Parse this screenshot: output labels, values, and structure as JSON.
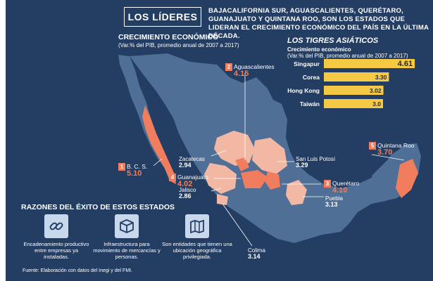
{
  "header": {
    "title": "LOS LÍDERES",
    "headline": "BAJACALIFORNIA SUR, AGUASCALIENTES, QUERÉTARO, GUANAJUATO Y QUINTANA ROO, SON LOS ESTADOS QUE LIDERAN EL CRECIMIENTO ECONÓMICO DEL PAÍS EN LA ÚLTIMA DÉCADA."
  },
  "growth": {
    "title": "CRECIMIENTO ECONÓMICO",
    "subtitle": "(Var.% del PIB, promedio anual de 2007 a 2017)"
  },
  "tigers": {
    "title": "LOS TIGRES ASIÁTICOS",
    "sub1": "Crecimiento económico",
    "sub2": "(Var.% del PIB, promedio anual de 2007 a 2017)"
  },
  "chart_data": {
    "type": "bar",
    "orientation": "horizontal",
    "title": "LOS TIGRES ASIÁTICOS",
    "categories": [
      "Singapur",
      "Corea",
      "Hong Kong",
      "Taiwán"
    ],
    "values": [
      4.61,
      3.3,
      3.02,
      3.0
    ],
    "value_labels": [
      "4.61",
      "3.30",
      "3.02",
      "3.0"
    ],
    "xlim": [
      0,
      5
    ],
    "grid": false,
    "bar_color": "#f6c945"
  },
  "leaders": [
    {
      "rank": "1",
      "name": "B. C. S.",
      "value": "5.10"
    },
    {
      "rank": "2",
      "name": "Aguascalientes",
      "value": "4.15"
    },
    {
      "rank": "3",
      "name": "Querétaro",
      "value": "4.10"
    },
    {
      "rank": "4",
      "name": "Guanajuato",
      "value": "4.02"
    },
    {
      "rank": "5",
      "name": "Quintana Roo",
      "value": "3.70"
    }
  ],
  "others": [
    {
      "name": "Zacatecas",
      "value": "2.94"
    },
    {
      "name": "San Luis Potosí",
      "value": "3.29"
    },
    {
      "name": "Jalisco",
      "value": "2.86"
    },
    {
      "name": "Puebla",
      "value": "3.13"
    },
    {
      "name": "Colima",
      "value": "3.14"
    }
  ],
  "reasons": {
    "title": "RAZONES DEL ÉXITO DE ESTOS ESTADOS",
    "items": [
      {
        "icon": "chain-link-icon",
        "text": "Encadenamiento productivo entre empresas ya instaladas."
      },
      {
        "icon": "package-box-icon",
        "text": "Infraestructura para movimiento de mercancías y personas."
      },
      {
        "icon": "map-location-icon",
        "text": "Son entidades que tienen una ubicación geográfica privilegiada."
      }
    ]
  },
  "source": "Fuente: Elaboración con datos del Inegi y del FMI.",
  "colors": {
    "background": "#233d63",
    "map_base": "#4f6f96",
    "map_light": "#f2b8a4",
    "map_leader": "#f07d5e",
    "bar": "#f6c945"
  }
}
